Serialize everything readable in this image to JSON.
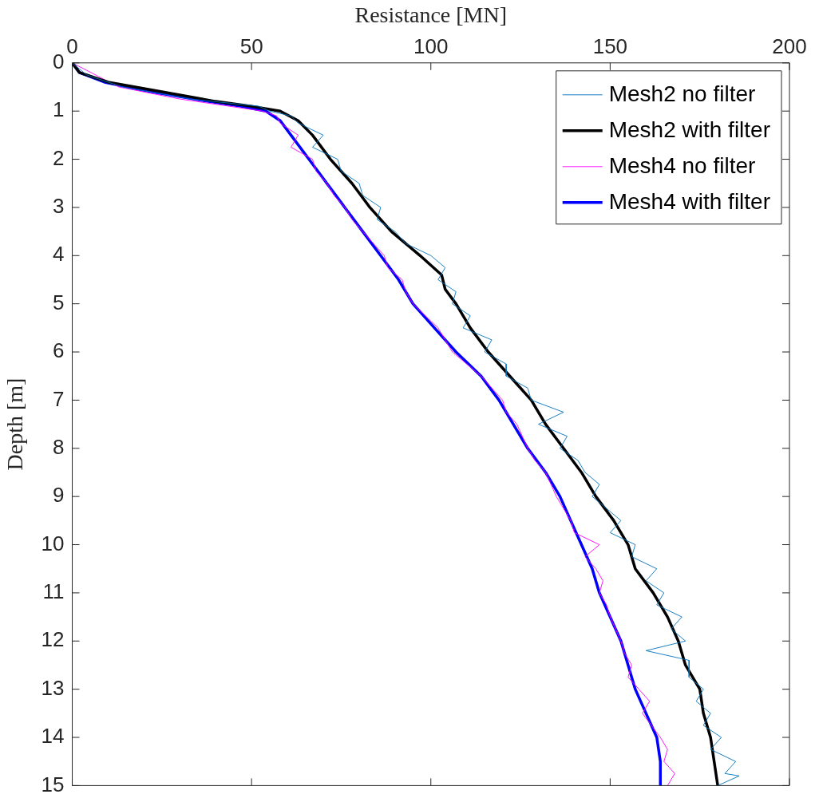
{
  "chart_data": {
    "type": "line",
    "xlabel": "Resistance [MN]",
    "ylabel": "Depth [m]",
    "xlim": [
      0,
      200
    ],
    "xticks": [
      0,
      50,
      100,
      150,
      200
    ],
    "ylim": [
      15,
      0
    ],
    "yticks": [
      0,
      1,
      2,
      3,
      4,
      5,
      6,
      7,
      8,
      9,
      10,
      11,
      12,
      13,
      14,
      15
    ],
    "grid": false,
    "legend": "top right",
    "marker": "none",
    "line_style": "solid",
    "series": [
      {
        "name": "Mesh2 no filter",
        "color": "#0072bd",
        "x": [
          0,
          4,
          14,
          33,
          52,
          55,
          61,
          63,
          70,
          67,
          74,
          75,
          80,
          81,
          86,
          85,
          90,
          93,
          100,
          104,
          102,
          107,
          106,
          111,
          109,
          117,
          115,
          121,
          121,
          127,
          128,
          137,
          130,
          138,
          136,
          141,
          143,
          147,
          145,
          153,
          150,
          157,
          156,
          163,
          160,
          165,
          163,
          170,
          167,
          171,
          160,
          172,
          172,
          176,
          174,
          178,
          176,
          181,
          178,
          185,
          182,
          186,
          180
        ],
        "values": [
          0,
          0.25,
          0.5,
          0.75,
          0.9,
          1.0,
          1.1,
          1.25,
          1.5,
          1.75,
          2,
          2.25,
          2.5,
          2.75,
          3,
          3.25,
          3.5,
          3.75,
          4,
          4.25,
          4.5,
          4.75,
          5,
          5.25,
          5.5,
          5.75,
          6,
          6.25,
          6.5,
          6.75,
          7,
          7.25,
          7.5,
          7.75,
          8,
          8.25,
          8.5,
          8.75,
          9,
          9.5,
          9.75,
          10,
          10.25,
          10.5,
          10.75,
          11,
          11.25,
          11.5,
          11.75,
          12,
          12.2,
          12.4,
          12.75,
          13,
          13.25,
          13.5,
          13.75,
          14,
          14.25,
          14.5,
          14.75,
          14.8,
          15
        ]
      },
      {
        "name": "Mesh2 with filter",
        "color": "#000000",
        "x": [
          0,
          2,
          10,
          25,
          40,
          50,
          58,
          63,
          67,
          72,
          78,
          83,
          89,
          97,
          103,
          104,
          107,
          111,
          116,
          122,
          128,
          132,
          137,
          142,
          146,
          151,
          155,
          157,
          162,
          166,
          169,
          171,
          175,
          176,
          178,
          179,
          180
        ],
        "values": [
          0,
          0.2,
          0.4,
          0.6,
          0.8,
          0.9,
          1.0,
          1.2,
          1.5,
          2,
          2.5,
          3,
          3.5,
          4,
          4.4,
          4.7,
          5,
          5.5,
          6,
          6.5,
          7,
          7.5,
          8,
          8.5,
          9,
          9.5,
          10,
          10.5,
          11,
          11.5,
          12,
          12.5,
          13,
          13.5,
          14,
          14.5,
          15
        ]
      },
      {
        "name": "Mesh4 no filter",
        "color": "#ff00ff",
        "x": [
          0,
          13,
          30,
          53,
          57,
          58,
          63,
          61,
          67,
          68,
          71,
          73,
          76,
          78,
          81,
          84,
          87,
          88,
          92,
          93,
          95,
          102,
          106,
          110,
          114,
          120,
          121,
          124,
          127,
          129,
          132,
          135,
          137,
          139,
          140,
          147,
          143,
          146,
          148,
          147,
          149,
          150,
          153,
          154,
          156,
          155,
          158,
          161,
          159,
          164,
          166,
          165,
          168,
          166
        ],
        "values": [
          0,
          0.5,
          0.75,
          1.0,
          1.1,
          1.25,
          1.5,
          1.75,
          2,
          2.25,
          2.5,
          2.75,
          3,
          3.25,
          3.5,
          3.75,
          4,
          4.25,
          4.5,
          4.75,
          5,
          5.5,
          6,
          6.25,
          6.5,
          7,
          7.25,
          7.5,
          8,
          8.25,
          8.5,
          9,
          9.25,
          9.5,
          9.75,
          10,
          10.25,
          10.5,
          10.75,
          11,
          11.25,
          11.5,
          12,
          12.25,
          12.5,
          12.75,
          13,
          13.25,
          13.5,
          14,
          14.25,
          14.5,
          14.75,
          15
        ]
      },
      {
        "name": "Mesh4 with filter",
        "color": "#0000ff",
        "x": [
          0,
          2,
          9,
          22,
          38,
          47,
          54,
          58,
          61,
          66,
          71,
          76,
          81,
          86,
          91,
          95,
          101,
          107,
          114,
          119,
          123,
          127,
          132,
          136,
          139,
          142,
          145,
          147,
          150,
          153,
          155,
          157,
          160,
          163,
          164,
          164
        ],
        "values": [
          0,
          0.2,
          0.4,
          0.6,
          0.8,
          0.9,
          1.0,
          1.2,
          1.5,
          2,
          2.5,
          3,
          3.5,
          4,
          4.5,
          5,
          5.5,
          6,
          6.5,
          7,
          7.5,
          8,
          8.5,
          9,
          9.5,
          10,
          10.5,
          11,
          11.5,
          12,
          12.5,
          13,
          13.5,
          14,
          14.5,
          15
        ]
      }
    ]
  }
}
